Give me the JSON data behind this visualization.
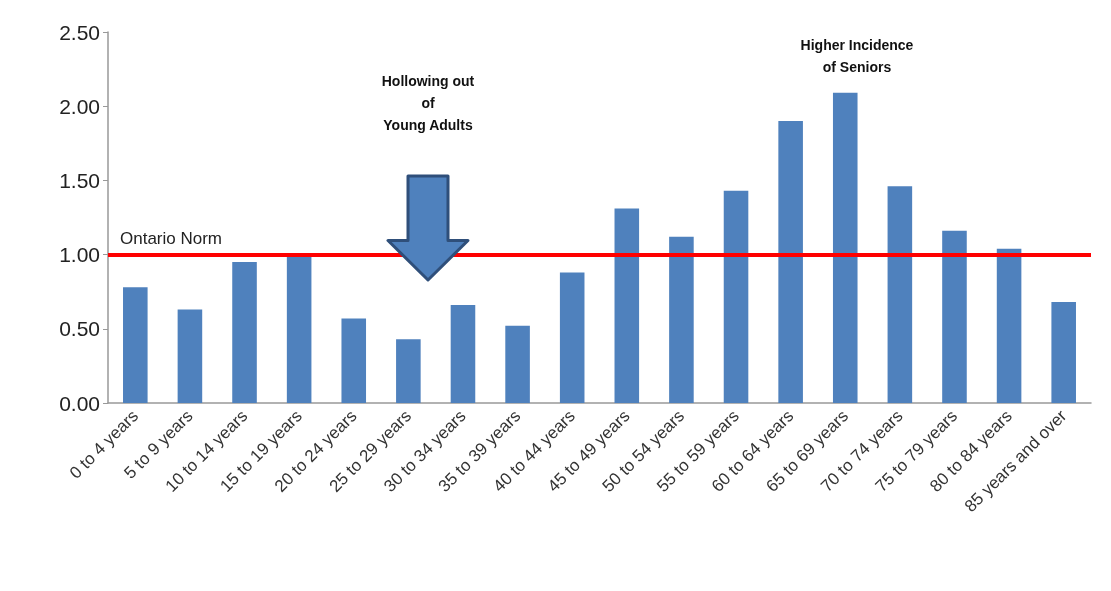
{
  "chart_data": {
    "type": "bar",
    "categories": [
      "0 to 4 years",
      "5 to 9 years",
      "10 to 14 years",
      "15 to 19 years",
      "20 to 24 years",
      "25 to 29 years",
      "30 to 34 years",
      "35 to 39 years",
      "40 to 44 years",
      "45 to 49 years",
      "50 to 54 years",
      "55 to 59 years",
      "60 to 64 years",
      "65 to 69 years",
      "70 to 74 years",
      "75 to 79 years",
      "80 to 84 years",
      "85 years and over"
    ],
    "values": [
      0.78,
      0.63,
      0.95,
      1.0,
      0.57,
      0.43,
      0.66,
      0.52,
      0.88,
      1.31,
      1.12,
      1.43,
      1.9,
      2.09,
      1.46,
      1.16,
      1.04,
      0.68
    ],
    "color": "#4f81bd",
    "ylim": [
      0,
      2.5
    ],
    "yticks": [
      {
        "value": 0,
        "label": "0.00"
      },
      {
        "value": 0.5,
        "label": "0.50"
      },
      {
        "value": 1,
        "label": "1.00"
      },
      {
        "value": 1.5,
        "label": "1.50"
      },
      {
        "value": 2,
        "label": "2.00"
      },
      {
        "value": 2.5,
        "label": "2.50"
      }
    ],
    "ref_lines": [
      {
        "axis": "y",
        "value": 1,
        "label": "Ontario Norm",
        "color": "#ff0000"
      }
    ],
    "annotations": [
      "Hollowing out\nof\nYoung Adults",
      "Higher Incidence\nof Seniors"
    ]
  }
}
